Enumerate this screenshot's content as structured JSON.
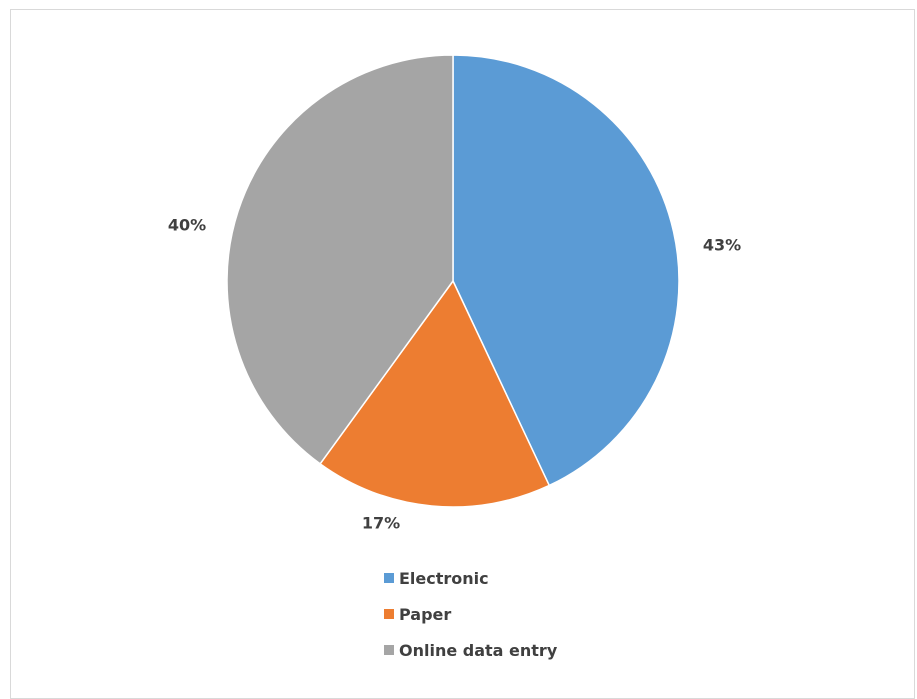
{
  "chart_data": {
    "type": "pie",
    "title": "",
    "start_angle_deg": 0,
    "direction": "clockwise",
    "slices": [
      {
        "name": "Electronic",
        "value": 43,
        "label": "43%",
        "color": "#5b9bd5"
      },
      {
        "name": "Paper",
        "value": 17,
        "label": "17%",
        "color": "#ed7d31"
      },
      {
        "name": "Online data entry",
        "value": 40,
        "label": "40%",
        "color": "#a5a5a5"
      }
    ],
    "legend_position": "bottom",
    "legend": [
      "Electronic",
      "Paper",
      "Online data entry"
    ]
  }
}
